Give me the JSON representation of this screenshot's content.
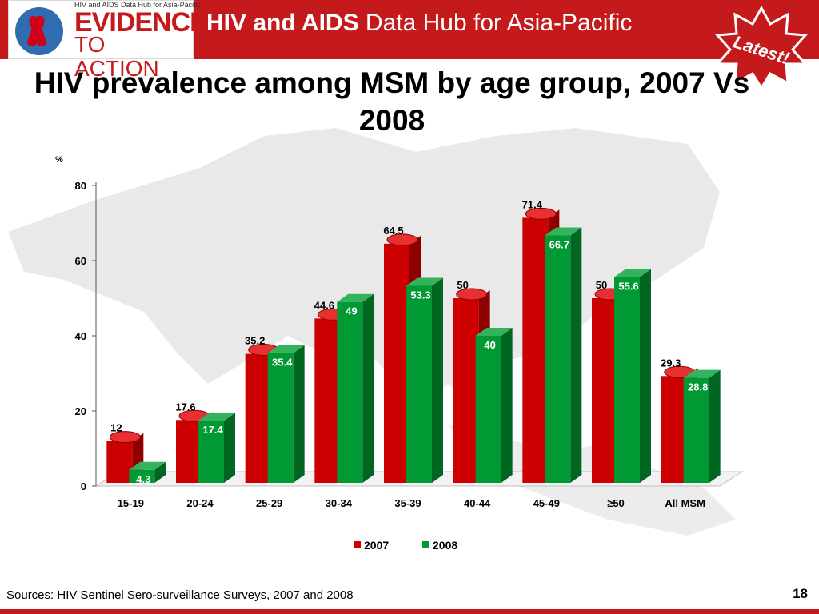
{
  "header": {
    "logo_small_text": "HIV and AIDS Data Hub for Asia-Pacific",
    "logo_evidence": "EVIDENCE",
    "logo_action": "TO ACTION",
    "title_bold": "HIV and AIDS",
    "title_rest": " Data Hub for Asia-Pacific",
    "badge_text": "Latest!"
  },
  "colors": {
    "header_red": "#c41a1c",
    "series_2007": "#cc0000",
    "series_2008": "#009933"
  },
  "chart_data": {
    "type": "bar",
    "title": "HIV prevalence among MSM by age group, 2007 Vs 2008",
    "ylabel": "%",
    "ylim": [
      0,
      80
    ],
    "yticks": [
      "0",
      "20",
      "40",
      "60",
      "80"
    ],
    "categories": [
      "15-19",
      "20-24",
      "25-29",
      "30-34",
      "35-39",
      "40-44",
      "45-49",
      "≥50",
      "All MSM"
    ],
    "series": [
      {
        "name": "2007",
        "values": [
          12,
          17.6,
          35.2,
          44.6,
          64.5,
          50,
          71.4,
          50,
          29.3
        ]
      },
      {
        "name": "2008",
        "values": [
          4.3,
          17.4,
          35.4,
          49,
          53.3,
          40,
          66.7,
          55.6,
          28.8
        ]
      }
    ],
    "legend_position": "bottom"
  },
  "footer": {
    "sources": "Sources: HIV Sentinel Sero-surveillance Surveys, 2007 and 2008",
    "page_number": "18"
  }
}
